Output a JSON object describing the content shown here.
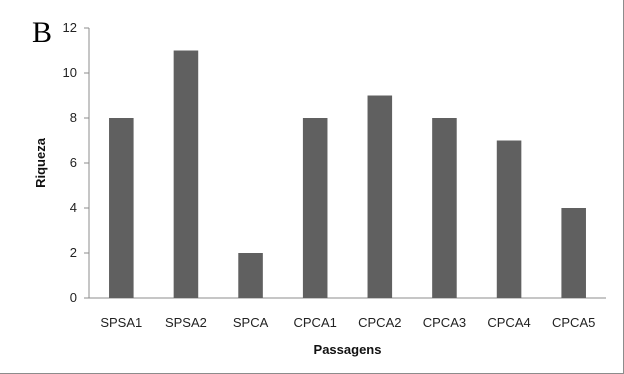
{
  "panel_label": "B",
  "chart_data": {
    "type": "bar",
    "categories": [
      "SPSA1",
      "SPSA2",
      "SPCA",
      "CPCA1",
      "CPCA2",
      "CPCA3",
      "CPCA4",
      "CPCA5"
    ],
    "values": [
      8,
      11,
      2,
      8,
      9,
      8,
      7,
      4
    ],
    "xlabel": "Passagens",
    "ylabel": "Riqueza",
    "ylim": [
      0,
      12
    ],
    "yticks": [
      0,
      2,
      4,
      6,
      8,
      10,
      12
    ],
    "grid": false,
    "legend": "none",
    "bar_color": "#606060"
  }
}
